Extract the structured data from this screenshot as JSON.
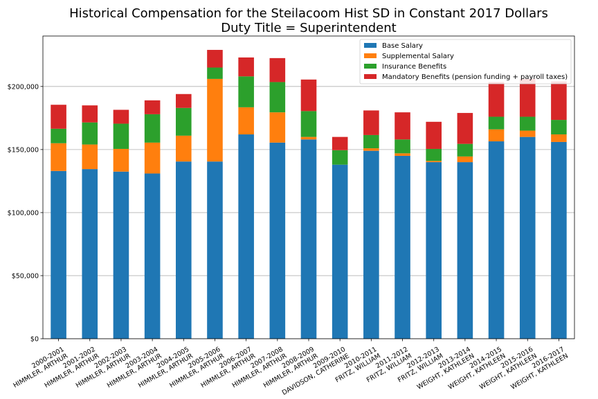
{
  "chart_data": {
    "type": "bar",
    "stacked": true,
    "title": "Historical Compensation for the Steilacoom Hist SD in Constant 2017 Dollars",
    "subtitle": "Duty Title = Superintendent",
    "xlabel": "",
    "ylabel": "",
    "ylim": [
      0,
      240000
    ],
    "yticks": [
      0,
      50000,
      100000,
      150000,
      200000
    ],
    "ytick_labels": [
      "$0",
      "$50,000",
      "$100,000",
      "$150,000",
      "$200,000"
    ],
    "grid": "horizontal",
    "legend_position": "top-right",
    "categories": [
      [
        "2000-2001",
        "HIMMLER, ARTHUR"
      ],
      [
        "2001-2002",
        "HIMMLER, ARTHUR"
      ],
      [
        "2002-2003",
        "HIMMLER, ARTHUR"
      ],
      [
        "2003-2004",
        "HIMMLER, ARTHUR"
      ],
      [
        "2004-2005",
        "HIMMLER, ARTHUR"
      ],
      [
        "2005-2006",
        "HIMMLER, ARTHUR"
      ],
      [
        "2006-2007",
        "HIMMLER, ARTHUR"
      ],
      [
        "2007-2008",
        "HIMMLER, ARTHUR"
      ],
      [
        "2008-2009",
        "HIMMLER, ARTHUR"
      ],
      [
        "2009-2010",
        "DAVIDSON, CATHERINE"
      ],
      [
        "2010-2011",
        "FRITZ, WILLIAM"
      ],
      [
        "2011-2012",
        "FRITZ, WILLIAM"
      ],
      [
        "2012-2013",
        "FRITZ, WILLIAM"
      ],
      [
        "2013-2014",
        "WEIGHT, KATHLEEN"
      ],
      [
        "2014-2015",
        "WEIGHT, KATHLEEN"
      ],
      [
        "2015-2016",
        "WEIGHT, KATHLEEN"
      ],
      [
        "2016-2017",
        "WEIGHT, KATHLEEN"
      ]
    ],
    "series": [
      {
        "name": "Base Salary",
        "color": "#1f77b4",
        "values": [
          133000,
          134500,
          132500,
          131000,
          140500,
          140500,
          162000,
          155500,
          158000,
          138000,
          149000,
          145000,
          140000,
          140000,
          156500,
          160000,
          156000
        ]
      },
      {
        "name": "Supplemental Salary",
        "color": "#ff7f0e",
        "values": [
          22000,
          19500,
          18000,
          24500,
          20500,
          65500,
          21500,
          24000,
          2000,
          0,
          2000,
          2000,
          1000,
          4500,
          9500,
          5000,
          6000
        ]
      },
      {
        "name": "Insurance Benefits",
        "color": "#2ca02c",
        "values": [
          11500,
          17500,
          20000,
          22500,
          22000,
          9000,
          24500,
          24000,
          20500,
          11500,
          10500,
          11000,
          9500,
          10000,
          10000,
          11000,
          11500
        ]
      },
      {
        "name": "Mandatory Benefits (pension funding + payroll taxes)",
        "color": "#d62728",
        "values": [
          19000,
          13500,
          11000,
          11000,
          11000,
          14000,
          15000,
          19000,
          25000,
          10500,
          19500,
          21500,
          21500,
          24500,
          27500,
          30000,
          30500
        ]
      }
    ]
  }
}
